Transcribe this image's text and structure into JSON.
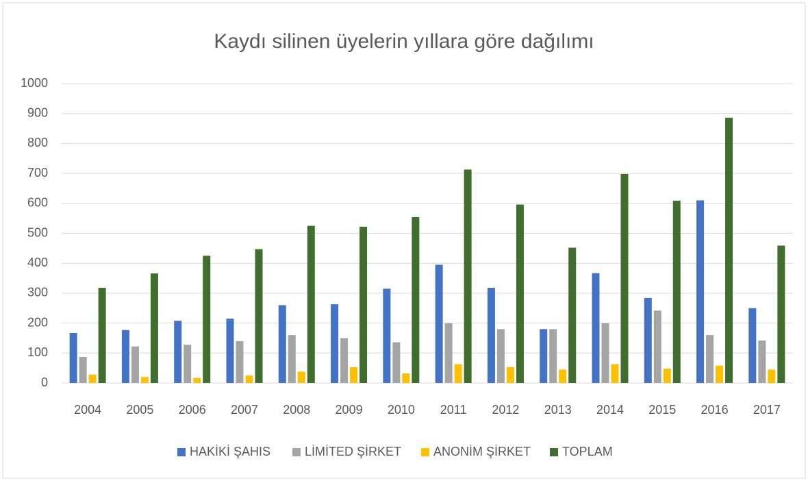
{
  "chart_data": {
    "type": "bar",
    "title": "Kaydı silinen üyelerin yıllara göre dağılımı",
    "categories": [
      "2004",
      "2005",
      "2006",
      "2007",
      "2008",
      "2009",
      "2010",
      "2011",
      "2012",
      "2013",
      "2014",
      "2015",
      "2016",
      "2017"
    ],
    "series": [
      {
        "name": "HAKİKİ ŞAHIS",
        "color": "#4472c4",
        "values": [
          167,
          177,
          208,
          215,
          260,
          263,
          315,
          395,
          318,
          180,
          367,
          284,
          610,
          250
        ]
      },
      {
        "name": "LİMİTED ŞİRKET",
        "color": "#a5a5a5",
        "values": [
          87,
          122,
          128,
          140,
          160,
          150,
          136,
          200,
          180,
          180,
          200,
          242,
          160,
          142
        ]
      },
      {
        "name": "ANONİM ŞİRKET",
        "color": "#ffc000",
        "values": [
          28,
          20,
          17,
          25,
          38,
          53,
          32,
          63,
          53,
          45,
          63,
          48,
          58,
          45
        ]
      },
      {
        "name": "TOPLAM",
        "color": "#3f6e2e",
        "values": [
          318,
          366,
          425,
          447,
          525,
          522,
          554,
          713,
          596,
          452,
          698,
          609,
          886,
          459
        ]
      }
    ],
    "ylim": [
      0,
      1000
    ],
    "yticks": [
      0,
      100,
      200,
      300,
      400,
      500,
      600,
      700,
      800,
      900,
      1000
    ],
    "grid": true,
    "legend": "bottom"
  }
}
